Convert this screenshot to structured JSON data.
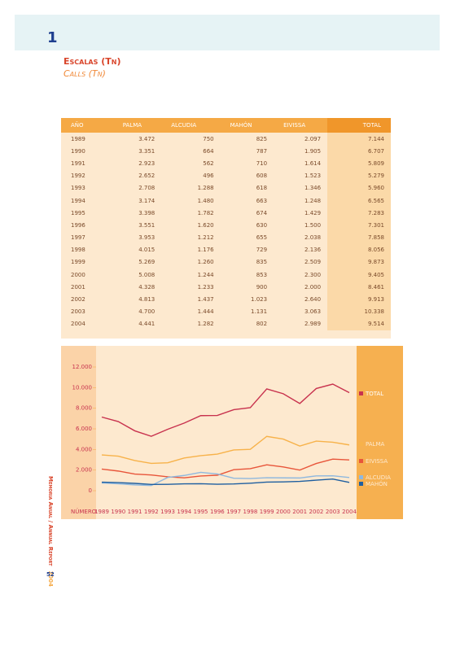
{
  "header": {
    "number": "1",
    "title": "Escalas (Tn)",
    "subtitle": "Calls (Tn)"
  },
  "table": {
    "header": [
      "AÑO",
      "PALMA",
      "ALCUDIA",
      "MAHÓN",
      "EIVISSA",
      "TOTAL"
    ],
    "rows": [
      [
        "1989",
        "3.472",
        "750",
        "825",
        "2.097",
        "7.144"
      ],
      [
        "1990",
        "3.351",
        "664",
        "787",
        "1.905",
        "6.707"
      ],
      [
        "1991",
        "2.923",
        "562",
        "710",
        "1.614",
        "5.809"
      ],
      [
        "1992",
        "2.652",
        "496",
        "608",
        "1.523",
        "5.279"
      ],
      [
        "1993",
        "2.708",
        "1.288",
        "618",
        "1.346",
        "5.960"
      ],
      [
        "1994",
        "3.174",
        "1.480",
        "663",
        "1.248",
        "6.565"
      ],
      [
        "1995",
        "3.398",
        "1.782",
        "674",
        "1.429",
        "7.283"
      ],
      [
        "1996",
        "3.551",
        "1.620",
        "630",
        "1.500",
        "7.301"
      ],
      [
        "1997",
        "3.953",
        "1.212",
        "655",
        "2.038",
        "7.858"
      ],
      [
        "1998",
        "4.015",
        "1.176",
        "729",
        "2.136",
        "8.056"
      ],
      [
        "1999",
        "5.269",
        "1.260",
        "835",
        "2.509",
        "9.873"
      ],
      [
        "2000",
        "5.008",
        "1.244",
        "853",
        "2.300",
        "9.405"
      ],
      [
        "2001",
        "4.328",
        "1.233",
        "900",
        "2.000",
        "8.461"
      ],
      [
        "2002",
        "4.813",
        "1.437",
        "1.023",
        "2.640",
        "9.913"
      ],
      [
        "2003",
        "4.700",
        "1.444",
        "1.131",
        "3.063",
        "10.338"
      ],
      [
        "2004",
        "4.441",
        "1.282",
        "802",
        "2.989",
        "9.514"
      ]
    ]
  },
  "chart_data": {
    "type": "line",
    "x_label": "NÚMERO",
    "categories": [
      "1989",
      "1990",
      "1991",
      "1992",
      "1993",
      "1994",
      "1995",
      "1996",
      "1997",
      "1998",
      "1999",
      "2000",
      "2001",
      "2002",
      "2003",
      "2004"
    ],
    "ylim": [
      0,
      12000
    ],
    "yticks": [
      0,
      {
        "value": 2000,
        "label": "2.000"
      },
      {
        "value": 4000,
        "label": "4.000"
      },
      {
        "value": 6000,
        "label": "6.000"
      },
      {
        "value": 8000,
        "label": "8.000"
      },
      {
        "value": 10000,
        "label": "10.000"
      },
      {
        "value": 12000,
        "label": "12.000"
      }
    ],
    "series": [
      {
        "name": "TOTAL",
        "color": "#c8324e",
        "values": [
          7144,
          6707,
          5809,
          5279,
          5960,
          6565,
          7283,
          7301,
          7858,
          8056,
          9873,
          9405,
          8461,
          9913,
          10338,
          9514
        ]
      },
      {
        "name": "PALMA",
        "color": "#f7b24a",
        "values": [
          3472,
          3351,
          2923,
          2652,
          2708,
          3174,
          3398,
          3551,
          3953,
          4015,
          5269,
          5008,
          4328,
          4813,
          4700,
          4441
        ]
      },
      {
        "name": "EIVISSA",
        "color": "#e8553a",
        "values": [
          2097,
          1905,
          1614,
          1523,
          1346,
          1248,
          1429,
          1500,
          2038,
          2136,
          2509,
          2300,
          2000,
          2640,
          3063,
          2989
        ]
      },
      {
        "name": "ALCUDIA",
        "color": "#8fb8de",
        "values": [
          750,
          664,
          562,
          496,
          1288,
          1480,
          1782,
          1620,
          1212,
          1176,
          1260,
          1244,
          1233,
          1437,
          1444,
          1282
        ]
      },
      {
        "name": "MAHÓN",
        "color": "#1f5fa0",
        "values": [
          825,
          787,
          710,
          608,
          618,
          663,
          674,
          630,
          655,
          729,
          835,
          853,
          900,
          1023,
          1131,
          802
        ]
      }
    ]
  },
  "sidebar": {
    "report": "Memoria Anual / Annual Report",
    "year": "2004"
  },
  "page_number": "52"
}
